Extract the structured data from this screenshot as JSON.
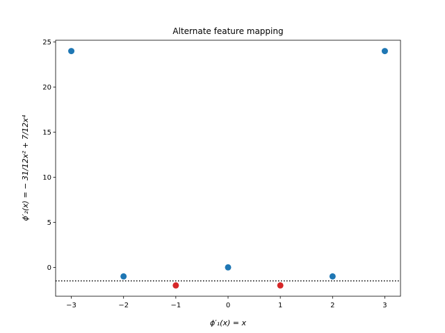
{
  "chart_data": {
    "type": "scatter",
    "title": "Alternate feature mapping",
    "xlabel": "ϕ′₁(x) = x",
    "ylabel": "ϕ′₂(x) = − 31/12x² + 7/12x⁴",
    "xlim": [
      -3.3,
      3.3
    ],
    "ylim": [
      -3.2,
      25.2
    ],
    "xticks": [
      -3,
      -2,
      -1,
      0,
      1,
      2,
      3
    ],
    "yticks": [
      0,
      5,
      10,
      15,
      20,
      25
    ],
    "grid": false,
    "series": [
      {
        "color": "#1f77b4",
        "points": [
          {
            "x": -3,
            "y": 24
          },
          {
            "x": -2,
            "y": -1
          },
          {
            "x": 0,
            "y": 0
          },
          {
            "x": 2,
            "y": -1
          },
          {
            "x": 3,
            "y": 24
          }
        ]
      },
      {
        "color": "#d62728",
        "points": [
          {
            "x": -1,
            "y": -2
          },
          {
            "x": 1,
            "y": -2
          }
        ]
      }
    ],
    "hlines": [
      {
        "y": -1.5,
        "style": "dotted",
        "color": "#000000"
      }
    ]
  }
}
